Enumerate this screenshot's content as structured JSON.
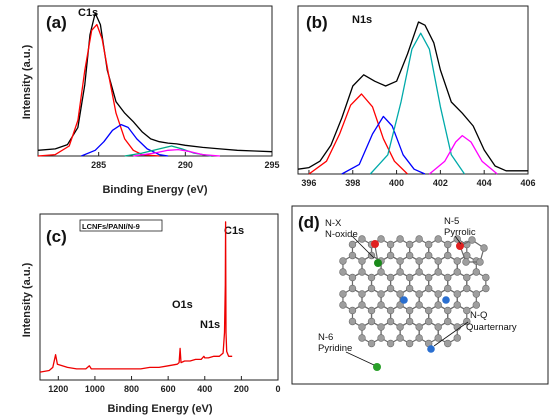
{
  "chart_data": [
    {
      "id": "a",
      "type": "line",
      "letter": "(a)",
      "peak_label": "C1s",
      "xlabel": "Binding Energy (eV)",
      "ylabel": "Intensity (a.u.)",
      "xlim": [
        281.5,
        295
      ],
      "x_reversed": false,
      "xticks": [
        285,
        290,
        295
      ],
      "series": [
        {
          "color": "#000000",
          "points": [
            [
              281.5,
              0.04
            ],
            [
              282.5,
              0.05
            ],
            [
              283.2,
              0.08
            ],
            [
              283.8,
              0.2
            ],
            [
              284.2,
              0.5
            ],
            [
              284.5,
              0.85
            ],
            [
              284.8,
              1.0
            ],
            [
              285.1,
              0.92
            ],
            [
              285.5,
              0.6
            ],
            [
              286.0,
              0.38
            ],
            [
              286.5,
              0.3
            ],
            [
              287.0,
              0.24
            ],
            [
              287.5,
              0.17
            ],
            [
              288.0,
              0.12
            ],
            [
              288.5,
              0.1
            ],
            [
              289.0,
              0.09
            ],
            [
              289.5,
              0.085
            ],
            [
              290.0,
              0.075
            ],
            [
              291.0,
              0.06
            ],
            [
              292.0,
              0.05
            ],
            [
              293.0,
              0.04
            ],
            [
              294.0,
              0.035
            ],
            [
              295.0,
              0.03
            ]
          ]
        },
        {
          "color": "#ff0000",
          "points": [
            [
              281.5,
              0.0
            ],
            [
              282.5,
              0.01
            ],
            [
              283.3,
              0.07
            ],
            [
              283.8,
              0.25
            ],
            [
              284.2,
              0.6
            ],
            [
              284.6,
              0.88
            ],
            [
              284.9,
              0.92
            ],
            [
              285.2,
              0.82
            ],
            [
              285.6,
              0.55
            ],
            [
              286.0,
              0.3
            ],
            [
              286.5,
              0.12
            ],
            [
              287.0,
              0.04
            ],
            [
              287.5,
              0.01
            ],
            [
              288.5,
              0.0
            ]
          ]
        },
        {
          "color": "#0000ff",
          "points": [
            [
              284.0,
              0.0
            ],
            [
              284.8,
              0.04
            ],
            [
              285.3,
              0.1
            ],
            [
              285.8,
              0.18
            ],
            [
              286.3,
              0.22
            ],
            [
              286.7,
              0.2
            ],
            [
              287.2,
              0.12
            ],
            [
              287.8,
              0.05
            ],
            [
              288.5,
              0.01
            ],
            [
              289.0,
              0.0
            ]
          ]
        },
        {
          "color": "#00aa88",
          "points": [
            [
              286.5,
              0.0
            ],
            [
              287.5,
              0.02
            ],
            [
              288.5,
              0.05
            ],
            [
              289.2,
              0.07
            ],
            [
              289.8,
              0.05
            ],
            [
              290.5,
              0.02
            ],
            [
              291.5,
              0.0
            ]
          ]
        },
        {
          "color": "#ff00ff",
          "points": [
            [
              287.0,
              0.0
            ],
            [
              288.2,
              0.02
            ],
            [
              289.0,
              0.04
            ],
            [
              289.6,
              0.045
            ],
            [
              290.3,
              0.03
            ],
            [
              291.0,
              0.01
            ],
            [
              292.0,
              0.0
            ]
          ]
        }
      ]
    },
    {
      "id": "b",
      "type": "line",
      "letter": "(b)",
      "peak_label": "N1s",
      "xlabel": "",
      "ylabel": "",
      "xlim": [
        395.5,
        406
      ],
      "x_reversed": false,
      "xticks": [
        396,
        398,
        400,
        402,
        404,
        406
      ],
      "series": [
        {
          "color": "#000000",
          "points": [
            [
              395.5,
              0.03
            ],
            [
              396.0,
              0.04
            ],
            [
              396.5,
              0.08
            ],
            [
              397.0,
              0.18
            ],
            [
              397.5,
              0.35
            ],
            [
              398.0,
              0.55
            ],
            [
              398.5,
              0.62
            ],
            [
              399.0,
              0.58
            ],
            [
              399.5,
              0.55
            ],
            [
              400.0,
              0.58
            ],
            [
              400.5,
              0.75
            ],
            [
              401.0,
              0.95
            ],
            [
              401.3,
              0.93
            ],
            [
              401.7,
              0.82
            ],
            [
              402.0,
              0.65
            ],
            [
              402.5,
              0.45
            ],
            [
              403.0,
              0.38
            ],
            [
              403.5,
              0.3
            ],
            [
              404.0,
              0.15
            ],
            [
              404.5,
              0.05
            ],
            [
              405.0,
              0.02
            ],
            [
              406.0,
              0.02
            ]
          ]
        },
        {
          "color": "#ff0000",
          "points": [
            [
              396.0,
              0.0
            ],
            [
              396.8,
              0.08
            ],
            [
              397.4,
              0.25
            ],
            [
              397.9,
              0.43
            ],
            [
              398.4,
              0.5
            ],
            [
              398.9,
              0.42
            ],
            [
              399.4,
              0.22
            ],
            [
              399.9,
              0.08
            ],
            [
              400.5,
              0.0
            ]
          ]
        },
        {
          "color": "#0000ff",
          "points": [
            [
              397.5,
              0.0
            ],
            [
              398.3,
              0.06
            ],
            [
              398.9,
              0.25
            ],
            [
              399.4,
              0.36
            ],
            [
              399.8,
              0.3
            ],
            [
              400.3,
              0.12
            ],
            [
              400.8,
              0.03
            ],
            [
              401.3,
              0.0
            ]
          ]
        },
        {
          "color": "#00aaaa",
          "points": [
            [
              398.8,
              0.0
            ],
            [
              399.6,
              0.12
            ],
            [
              400.2,
              0.45
            ],
            [
              400.7,
              0.78
            ],
            [
              401.1,
              0.88
            ],
            [
              401.5,
              0.78
            ],
            [
              402.0,
              0.42
            ],
            [
              402.5,
              0.12
            ],
            [
              403.1,
              0.0
            ]
          ]
        },
        {
          "color": "#ff00ff",
          "points": [
            [
              401.5,
              0.0
            ],
            [
              402.2,
              0.08
            ],
            [
              402.7,
              0.2
            ],
            [
              403.0,
              0.24
            ],
            [
              403.4,
              0.2
            ],
            [
              403.9,
              0.08
            ],
            [
              404.6,
              0.0
            ]
          ]
        }
      ]
    },
    {
      "id": "c",
      "type": "line",
      "letter": "(c)",
      "sample_label": "LCNFs/PANI/N-9",
      "peak_labels": [
        {
          "text": "C1s",
          "color": "#000000"
        },
        {
          "text": "O1s",
          "color": "#00aa00"
        },
        {
          "text": "N1s",
          "color": "#0000cc"
        }
      ],
      "xlabel": "Binding Energy (eV)",
      "ylabel": "Intensity (a.u.)",
      "xlim": [
        1300,
        0
      ],
      "x_reversed": true,
      "xticks": [
        1200,
        1000,
        800,
        600,
        400,
        200,
        0
      ],
      "series": [
        {
          "color": "#ee0000",
          "points": [
            [
              1300,
              0.05
            ],
            [
              1250,
              0.06
            ],
            [
              1230,
              0.08
            ],
            [
              1215,
              0.16
            ],
            [
              1205,
              0.1
            ],
            [
              1150,
              0.08
            ],
            [
              1100,
              0.07
            ],
            [
              1050,
              0.07
            ],
            [
              1030,
              0.09
            ],
            [
              1020,
              0.07
            ],
            [
              1000,
              0.07
            ],
            [
              950,
              0.07
            ],
            [
              900,
              0.07
            ],
            [
              850,
              0.07
            ],
            [
              800,
              0.07
            ],
            [
              750,
              0.07
            ],
            [
              700,
              0.08
            ],
            [
              650,
              0.08
            ],
            [
              600,
              0.09
            ],
            [
              550,
              0.1
            ],
            [
              540,
              0.11
            ],
            [
              535,
              0.2
            ],
            [
              530,
              0.11
            ],
            [
              510,
              0.12
            ],
            [
              480,
              0.12
            ],
            [
              450,
              0.13
            ],
            [
              420,
              0.13
            ],
            [
              405,
              0.15
            ],
            [
              400,
              0.14
            ],
            [
              380,
              0.14
            ],
            [
              350,
              0.15
            ],
            [
              320,
              0.15
            ],
            [
              300,
              0.17
            ],
            [
              292,
              0.3
            ],
            [
              288,
              0.6
            ],
            [
              286,
              1.0
            ],
            [
              284,
              0.3
            ],
            [
              280,
              0.18
            ],
            [
              270,
              0.15
            ],
            [
              250,
              0.15
            ]
          ]
        }
      ]
    }
  ],
  "diagram": {
    "letter": "(d)",
    "labels": [
      {
        "text": "N-X"
      },
      {
        "text": "N-oxide"
      },
      {
        "text": "N-5"
      },
      {
        "text": "Pyrrolic"
      },
      {
        "text": "N-Q"
      },
      {
        "text": "Quarternary"
      },
      {
        "text": "N-6"
      },
      {
        "text": "Pyridine"
      }
    ],
    "colors": {
      "carbon": "#9e9e9e",
      "oxygen": "#e02020",
      "nitrogen_oxide": "#1a8a1a",
      "nitrogen_quaternary": "#2a6fd0",
      "nitrogen_pyridinic": "#2aa02a"
    }
  }
}
